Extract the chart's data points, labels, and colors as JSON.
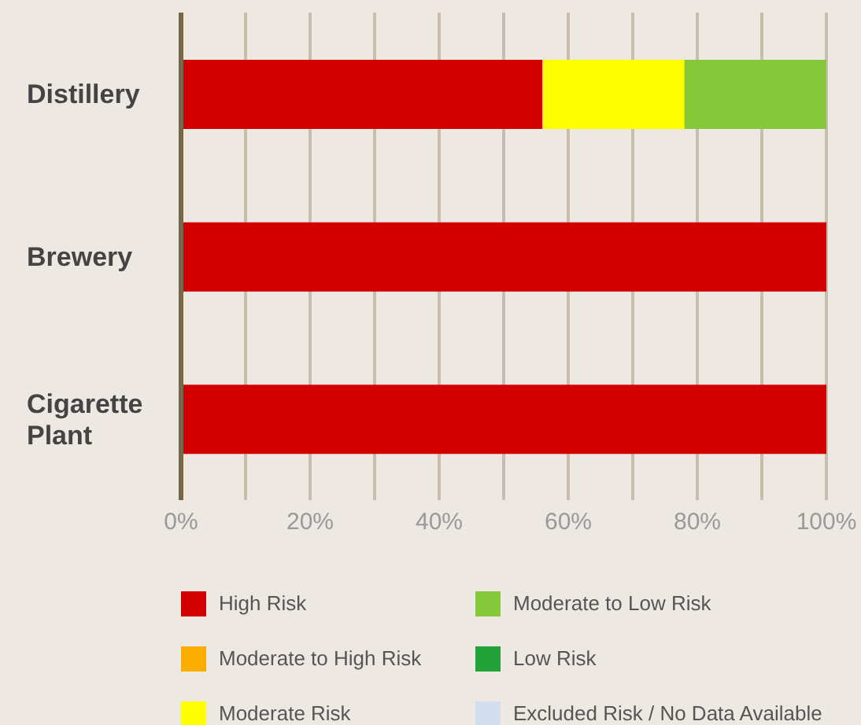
{
  "chart_data": {
    "type": "bar",
    "orientation": "horizontal",
    "stacked": true,
    "categories": [
      "Distillery",
      "Brewery",
      "Cigarette Plant"
    ],
    "series": [
      {
        "name": "High Risk",
        "color": "#d20000",
        "values": [
          56,
          100,
          100
        ]
      },
      {
        "name": "Moderate to High Risk",
        "color": "#fbad00",
        "values": [
          0,
          0,
          0
        ]
      },
      {
        "name": "Moderate Risk",
        "color": "#ffff00",
        "values": [
          22,
          0,
          0
        ]
      },
      {
        "name": "Moderate to Low Risk",
        "color": "#86c83a",
        "values": [
          22,
          0,
          0
        ]
      },
      {
        "name": "Low Risk",
        "color": "#22a238",
        "values": [
          0,
          0,
          0
        ]
      },
      {
        "name": "Excluded Risk / No Data Available",
        "color": "#d2ddee",
        "values": [
          0,
          0,
          0
        ]
      }
    ],
    "xlim": [
      0,
      100
    ],
    "xticks": [
      {
        "value": 0,
        "label": "0%"
      },
      {
        "value": 10,
        "label": null
      },
      {
        "value": 20,
        "label": "20%"
      },
      {
        "value": 30,
        "label": null
      },
      {
        "value": 40,
        "label": "40%"
      },
      {
        "value": 50,
        "label": null
      },
      {
        "value": 60,
        "label": "60%"
      },
      {
        "value": 70,
        "label": null
      },
      {
        "value": 80,
        "label": "80%"
      },
      {
        "value": 90,
        "label": null
      },
      {
        "value": 100,
        "label": "100%"
      }
    ],
    "grid": "x",
    "legend": "bottom"
  }
}
